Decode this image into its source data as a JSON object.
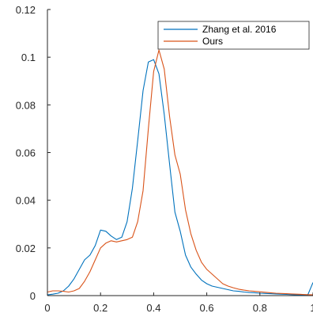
{
  "chart_data": {
    "type": "line",
    "title": "",
    "xlabel": "",
    "ylabel": "",
    "xlim": [
      0,
      1
    ],
    "ylim": [
      0,
      0.12
    ],
    "xticks": [
      0,
      0.2,
      0.4,
      0.6,
      0.8,
      1
    ],
    "yticks": [
      0,
      0.02,
      0.04,
      0.06,
      0.08,
      0.1,
      0.12
    ],
    "xtick_labels": [
      "0",
      "0.2",
      "0.4",
      "0.6",
      "0.8",
      "1"
    ],
    "ytick_labels": [
      "0",
      "0.02",
      "0.04",
      "0.06",
      "0.08",
      "0.1",
      "0.12"
    ],
    "grid": false,
    "legend_position": "top-right",
    "series": [
      {
        "name": "Zhang et al. 2016",
        "color": "#0072BD",
        "x": [
          0,
          0.02,
          0.04,
          0.06,
          0.08,
          0.1,
          0.12,
          0.14,
          0.16,
          0.18,
          0.2,
          0.22,
          0.24,
          0.26,
          0.28,
          0.3,
          0.32,
          0.34,
          0.36,
          0.38,
          0.4,
          0.42,
          0.44,
          0.46,
          0.48,
          0.5,
          0.52,
          0.54,
          0.56,
          0.58,
          0.6,
          0.62,
          0.64,
          0.66,
          0.68,
          0.7,
          0.72,
          0.74,
          0.76,
          0.78,
          0.8,
          0.82,
          0.84,
          0.86,
          0.88,
          0.9,
          0.92,
          0.94,
          0.96,
          0.98,
          1.0
        ],
        "y": [
          0.0003,
          0.0006,
          0.001,
          0.002,
          0.004,
          0.007,
          0.011,
          0.015,
          0.017,
          0.021,
          0.0275,
          0.027,
          0.025,
          0.0235,
          0.0245,
          0.031,
          0.045,
          0.065,
          0.086,
          0.098,
          0.099,
          0.093,
          0.076,
          0.055,
          0.035,
          0.027,
          0.017,
          0.012,
          0.009,
          0.0065,
          0.005,
          0.004,
          0.0035,
          0.003,
          0.0025,
          0.002,
          0.0018,
          0.0015,
          0.0013,
          0.0012,
          0.001,
          0.0009,
          0.0008,
          0.0007,
          0.0006,
          0.0005,
          0.0004,
          0.0003,
          0.0003,
          0.0002,
          0.0055
        ]
      },
      {
        "name": "Ours",
        "color": "#D95319",
        "x": [
          0,
          0.02,
          0.04,
          0.06,
          0.08,
          0.1,
          0.12,
          0.14,
          0.16,
          0.18,
          0.2,
          0.22,
          0.24,
          0.26,
          0.28,
          0.3,
          0.32,
          0.34,
          0.36,
          0.38,
          0.4,
          0.42,
          0.44,
          0.46,
          0.48,
          0.5,
          0.52,
          0.54,
          0.56,
          0.58,
          0.6,
          0.62,
          0.64,
          0.66,
          0.68,
          0.7,
          0.72,
          0.74,
          0.76,
          0.78,
          0.8,
          0.82,
          0.84,
          0.86,
          0.88,
          0.9,
          0.92,
          0.94,
          0.96,
          0.98,
          1.0
        ],
        "y": [
          0.0015,
          0.002,
          0.002,
          0.0018,
          0.0015,
          0.002,
          0.003,
          0.006,
          0.01,
          0.015,
          0.02,
          0.022,
          0.023,
          0.0225,
          0.023,
          0.0235,
          0.0245,
          0.031,
          0.044,
          0.07,
          0.094,
          0.103,
          0.095,
          0.075,
          0.059,
          0.051,
          0.036,
          0.026,
          0.019,
          0.014,
          0.011,
          0.009,
          0.007,
          0.005,
          0.004,
          0.0033,
          0.0027,
          0.0023,
          0.002,
          0.0018,
          0.0016,
          0.0014,
          0.0012,
          0.001,
          0.0009,
          0.0008,
          0.0007,
          0.0006,
          0.0005,
          0.0004,
          0.0003
        ]
      }
    ]
  }
}
